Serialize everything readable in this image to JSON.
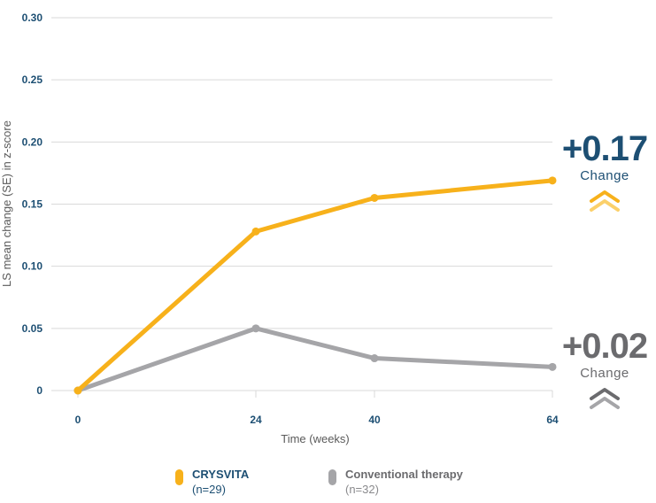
{
  "chart_data": {
    "type": "line",
    "x": [
      0,
      24,
      40,
      64
    ],
    "xticks": [
      "0",
      "24",
      "40",
      "64"
    ],
    "yticks": [
      "0.30",
      "0.25",
      "0.20",
      "0.15",
      "0.10",
      "0.05",
      "0"
    ],
    "ylim": [
      0,
      0.3
    ],
    "xlim": [
      0,
      64
    ],
    "xlabel": "Time (weeks)",
    "ylabel": "LS mean change (SE) in z-score",
    "grid": true,
    "series": [
      {
        "name": "CRYSVITA",
        "n_label": "(n=29)",
        "values": [
          0,
          0.128,
          0.155,
          0.169
        ],
        "color": "#f7b11b"
      },
      {
        "name": "Conventional therapy",
        "n_label": "(n=32)",
        "values": [
          0,
          0.05,
          0.026,
          0.019
        ],
        "color": "#a5a5a8"
      }
    ]
  },
  "callouts": [
    {
      "value": "+0.17",
      "label": "Change",
      "color": "#1d4f73",
      "icon": "double-chevron-up-icon",
      "chevron_colors": [
        "#f7b11b",
        "#fbd06a"
      ]
    },
    {
      "value": "+0.02",
      "label": "Change",
      "color": "#6b6b6e",
      "icon": "double-chevron-up-icon",
      "chevron_colors": [
        "#6b6b6e",
        "#a5a5a8"
      ]
    }
  ],
  "legend": [
    {
      "name": "CRYSVITA",
      "n": "(n=29)",
      "name_color": "#1d4f73",
      "n_color": "#1d4f73",
      "swatch": "#f7b11b"
    },
    {
      "name": "Conventional therapy",
      "n": "(n=32)",
      "name_color": "#6b6b6e",
      "n_color": "#8a8a8d",
      "swatch": "#a5a5a8"
    }
  ]
}
